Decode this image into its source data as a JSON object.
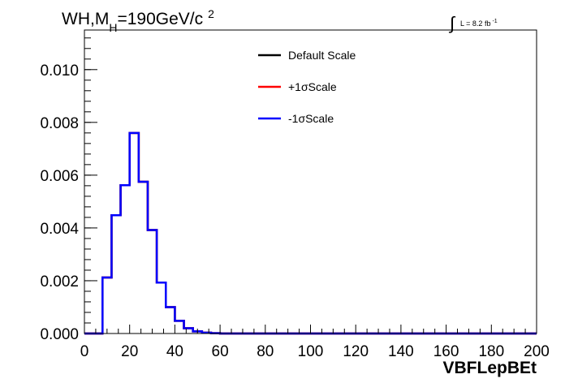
{
  "chart_data": {
    "type": "line",
    "title": {
      "prefix": "WH,M",
      "subscript": "H",
      "suffix": "=190GeV/c",
      "superscript": "2"
    },
    "luminosity": {
      "symbol": "∫",
      "label": "L = 8.2 fb",
      "superscript": "-1"
    },
    "xlabel": "VBFLepBEt",
    "ylabel": "",
    "xlim": [
      0,
      200
    ],
    "ylim": [
      0,
      0.0115
    ],
    "x_ticks": [
      0,
      20,
      40,
      60,
      80,
      100,
      120,
      140,
      160,
      180,
      200
    ],
    "x_tick_labels": [
      "0",
      "20",
      "40",
      "60",
      "80",
      "100",
      "120",
      "140",
      "160",
      "180",
      "200"
    ],
    "y_ticks": [
      0,
      0.002,
      0.004,
      0.006,
      0.008,
      0.01
    ],
    "y_tick_labels": [
      "0.000",
      "0.002",
      "0.004",
      "0.006",
      "0.008",
      "0.010"
    ],
    "grid": false,
    "legend_position": "top-center",
    "bin_edges": [
      0,
      4,
      8,
      12,
      16,
      20,
      24,
      28,
      32,
      36,
      40,
      44,
      48,
      52,
      56,
      60,
      200
    ],
    "series": [
      {
        "name": "Default Scale",
        "color": "#000000",
        "values": [
          0,
          0,
          0.00212,
          0.00448,
          0.00562,
          0.0076,
          0.00575,
          0.00392,
          0.00193,
          0.001,
          0.00048,
          0.0002,
          8e-05,
          3e-05,
          1e-05,
          0
        ]
      },
      {
        "name": "+1σScale",
        "color": "#ff0000",
        "values": [
          0,
          0,
          0.00212,
          0.00448,
          0.00562,
          0.0076,
          0.00575,
          0.00392,
          0.00193,
          0.001,
          0.00048,
          0.0002,
          8e-05,
          3e-05,
          1e-05,
          0
        ]
      },
      {
        "name": "-1σScale",
        "color": "#0000ff",
        "values": [
          0,
          0,
          0.00212,
          0.00448,
          0.00562,
          0.0076,
          0.00575,
          0.00392,
          0.00193,
          0.001,
          0.00048,
          0.0002,
          8e-05,
          3e-05,
          1e-05,
          0
        ]
      }
    ]
  }
}
